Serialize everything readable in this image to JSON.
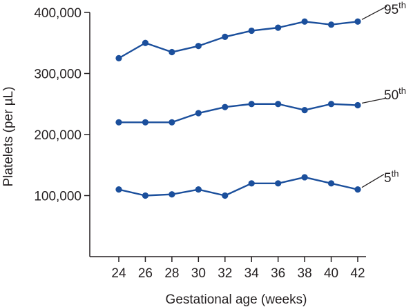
{
  "chart_data": {
    "type": "line",
    "title": "",
    "xlabel": "Gestational age (weeks)",
    "ylabel": "Platelets (per µL)",
    "x": [
      24,
      26,
      28,
      30,
      32,
      34,
      36,
      38,
      40,
      42
    ],
    "x_tick_labels": [
      "24",
      "26",
      "28",
      "30",
      "32",
      "34",
      "36",
      "38",
      "40",
      "42"
    ],
    "y_ticks": [
      100000,
      200000,
      300000,
      400000
    ],
    "y_tick_labels": [
      "100,000",
      "200,000",
      "300,000",
      "400,000"
    ],
    "xlim": [
      22,
      42
    ],
    "ylim": [
      0,
      400000
    ],
    "grid": false,
    "legend": "none",
    "line_color": "#1b4f9c",
    "series": [
      {
        "name_base": "95",
        "name_sup": "th",
        "values": [
          325000,
          350000,
          335000,
          345000,
          360000,
          370000,
          375000,
          385000,
          380000,
          385000
        ]
      },
      {
        "name_base": "50",
        "name_sup": "th",
        "values": [
          220000,
          220000,
          220000,
          235000,
          245000,
          250000,
          250000,
          240000,
          250000,
          248000
        ]
      },
      {
        "name_base": "5",
        "name_sup": "th",
        "values": [
          110000,
          100000,
          102000,
          110000,
          100000,
          120000,
          120000,
          130000,
          120000,
          110000
        ]
      }
    ]
  }
}
